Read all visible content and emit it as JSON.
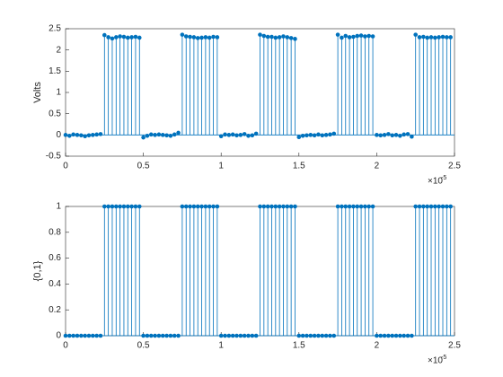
{
  "chart_data": [
    {
      "type": "stem",
      "ylabel": "Volts",
      "color": "#0072bd",
      "x_exponent_base": "×10",
      "x_exponent": "-5",
      "xlim": [
        0,
        2.5
      ],
      "xticks": [
        0,
        0.5,
        1,
        1.5,
        2,
        2.5
      ],
      "ylim": [
        -0.5,
        2.5
      ],
      "yticks": [
        -0.5,
        0,
        0.5,
        1,
        1.5,
        2,
        2.5
      ],
      "x": [
        0,
        0.025,
        0.05,
        0.075,
        0.1,
        0.125,
        0.15,
        0.175,
        0.2,
        0.225,
        0.25,
        0.275,
        0.3,
        0.325,
        0.35,
        0.375,
        0.4,
        0.425,
        0.45,
        0.475,
        0.5,
        0.525,
        0.55,
        0.575,
        0.6,
        0.625,
        0.65,
        0.675,
        0.7,
        0.725,
        0.75,
        0.775,
        0.8,
        0.825,
        0.85,
        0.875,
        0.9,
        0.925,
        0.95,
        0.975,
        1,
        1.025,
        1.05,
        1.075,
        1.1,
        1.125,
        1.15,
        1.175,
        1.2,
        1.225,
        1.25,
        1.275,
        1.3,
        1.325,
        1.35,
        1.375,
        1.4,
        1.425,
        1.45,
        1.475,
        1.5,
        1.525,
        1.55,
        1.575,
        1.6,
        1.625,
        1.65,
        1.675,
        1.7,
        1.725,
        1.75,
        1.775,
        1.8,
        1.825,
        1.85,
        1.875,
        1.9,
        1.925,
        1.95,
        1.975,
        2,
        2.025,
        2.05,
        2.075,
        2.1,
        2.125,
        2.15,
        2.175,
        2.2,
        2.225,
        2.25,
        2.275,
        2.3,
        2.325,
        2.35,
        2.375,
        2.4,
        2.425,
        2.45,
        2.475
      ],
      "values": [
        0.0,
        -0.02,
        0.01,
        0.0,
        -0.01,
        -0.03,
        -0.01,
        0.0,
        0.01,
        0.02,
        2.35,
        2.3,
        2.27,
        2.3,
        2.32,
        2.31,
        2.29,
        2.3,
        2.31,
        2.29,
        -0.06,
        -0.02,
        0.01,
        0.0,
        0.01,
        0.0,
        -0.01,
        -0.02,
        0.01,
        0.05,
        2.36,
        2.32,
        2.31,
        2.3,
        2.28,
        2.29,
        2.3,
        2.29,
        2.31,
        2.3,
        -0.03,
        0.01,
        0.0,
        0.01,
        -0.01,
        0.0,
        0.02,
        -0.02,
        -0.01,
        0.03,
        2.36,
        2.33,
        2.31,
        2.31,
        2.29,
        2.3,
        2.32,
        2.3,
        2.28,
        2.26,
        -0.05,
        -0.02,
        -0.01,
        0.0,
        -0.01,
        0.01,
        -0.01,
        0.0,
        0.01,
        0.03,
        2.36,
        2.29,
        2.33,
        2.3,
        2.31,
        2.33,
        2.34,
        2.32,
        2.33,
        2.32,
        0.0,
        -0.01,
        0.0,
        0.02,
        -0.01,
        0.0,
        -0.02,
        0.01,
        0.02,
        -0.04,
        2.36,
        2.3,
        2.31,
        2.29,
        2.3,
        2.29,
        2.3,
        2.31,
        2.3,
        2.3
      ]
    },
    {
      "type": "stem",
      "ylabel": "{0,1}",
      "color": "#0072bd",
      "x_exponent_base": "×10",
      "x_exponent": "-5",
      "xlim": [
        0,
        2.5
      ],
      "xticks": [
        0,
        0.5,
        1,
        1.5,
        2,
        2.5
      ],
      "ylim": [
        0,
        1
      ],
      "yticks": [
        0,
        0.2,
        0.4,
        0.6,
        0.8,
        1
      ],
      "x": [
        0,
        0.025,
        0.05,
        0.075,
        0.1,
        0.125,
        0.15,
        0.175,
        0.2,
        0.225,
        0.25,
        0.275,
        0.3,
        0.325,
        0.35,
        0.375,
        0.4,
        0.425,
        0.45,
        0.475,
        0.5,
        0.525,
        0.55,
        0.575,
        0.6,
        0.625,
        0.65,
        0.675,
        0.7,
        0.725,
        0.75,
        0.775,
        0.8,
        0.825,
        0.85,
        0.875,
        0.9,
        0.925,
        0.95,
        0.975,
        1,
        1.025,
        1.05,
        1.075,
        1.1,
        1.125,
        1.15,
        1.175,
        1.2,
        1.225,
        1.25,
        1.275,
        1.3,
        1.325,
        1.35,
        1.375,
        1.4,
        1.425,
        1.45,
        1.475,
        1.5,
        1.525,
        1.55,
        1.575,
        1.6,
        1.625,
        1.65,
        1.675,
        1.7,
        1.725,
        1.75,
        1.775,
        1.8,
        1.825,
        1.85,
        1.875,
        1.9,
        1.925,
        1.95,
        1.975,
        2,
        2.025,
        2.05,
        2.075,
        2.1,
        2.125,
        2.15,
        2.175,
        2.2,
        2.225,
        2.25,
        2.275,
        2.3,
        2.325,
        2.35,
        2.375,
        2.4,
        2.425,
        2.45,
        2.475
      ],
      "values": [
        0,
        0,
        0,
        0,
        0,
        0,
        0,
        0,
        0,
        0,
        1,
        1,
        1,
        1,
        1,
        1,
        1,
        1,
        1,
        1,
        0,
        0,
        0,
        0,
        0,
        0,
        0,
        0,
        0,
        0,
        1,
        1,
        1,
        1,
        1,
        1,
        1,
        1,
        1,
        1,
        0,
        0,
        0,
        0,
        0,
        0,
        0,
        0,
        0,
        0,
        1,
        1,
        1,
        1,
        1,
        1,
        1,
        1,
        1,
        1,
        0,
        0,
        0,
        0,
        0,
        0,
        0,
        0,
        0,
        0,
        1,
        1,
        1,
        1,
        1,
        1,
        1,
        1,
        1,
        1,
        0,
        0,
        0,
        0,
        0,
        0,
        0,
        0,
        0,
        0,
        1,
        1,
        1,
        1,
        1,
        1,
        1,
        1,
        1,
        1
      ]
    }
  ]
}
